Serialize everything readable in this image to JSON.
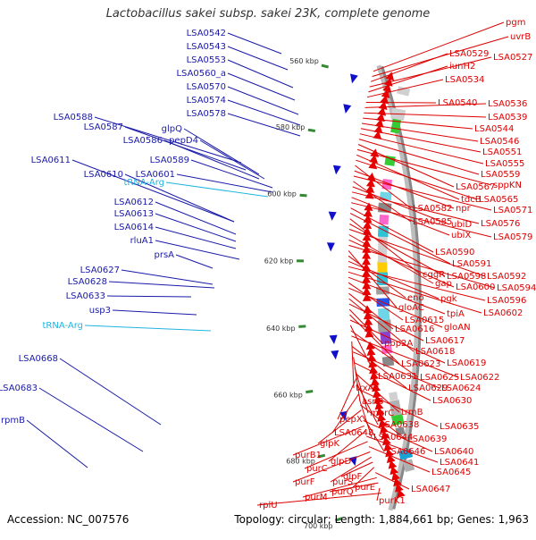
{
  "title": "Lactobacillus sakei subsp. sakei 23K, complete genome",
  "accession": "Accession: NC_007576",
  "topology": "Topology: circular; Length: 1,884,661 bp; Genes: 1,963",
  "colors": {
    "plus_strand": "#1010cc",
    "minus_strand": "#e80000",
    "plus_label": "#1a1aa8",
    "trna_label": "#22b4e0",
    "minus_label": "#dd0000",
    "backbone": "#888888",
    "tick": "#338a33"
  },
  "kbp_ticks": [
    "560 kbp",
    "580 kbp",
    "600 kbp",
    "620 kbp",
    "640 kbp",
    "660 kbp",
    "680 kbp",
    "700 kbp"
  ],
  "left_labels": [
    {
      "text": "LSA0542",
      "kind": "gene"
    },
    {
      "text": "LSA0543",
      "kind": "gene"
    },
    {
      "text": "LSA0553",
      "kind": "gene"
    },
    {
      "text": "LSA0560_a",
      "kind": "gene"
    },
    {
      "text": "LSA0570",
      "kind": "gene"
    },
    {
      "text": "LSA0574",
      "kind": "gene"
    },
    {
      "text": "LSA0578",
      "kind": "gene"
    },
    {
      "text": "LSA0588",
      "kind": "gene"
    },
    {
      "text": "LSA0587",
      "kind": "gene"
    },
    {
      "text": "glpQ",
      "kind": "gene"
    },
    {
      "text": "LSA0586",
      "kind": "gene"
    },
    {
      "text": "pepD4",
      "kind": "gene"
    },
    {
      "text": "LSA0611",
      "kind": "gene"
    },
    {
      "text": "LSA0589",
      "kind": "gene"
    },
    {
      "text": "LSA0610",
      "kind": "gene"
    },
    {
      "text": "LSA0601",
      "kind": "gene"
    },
    {
      "text": "tRNA-Arg",
      "kind": "trna"
    },
    {
      "text": "LSA0612",
      "kind": "gene"
    },
    {
      "text": "LSA0613",
      "kind": "gene"
    },
    {
      "text": "LSA0614",
      "kind": "gene"
    },
    {
      "text": "rluA1",
      "kind": "gene"
    },
    {
      "text": "prsA",
      "kind": "gene"
    },
    {
      "text": "LSA0627",
      "kind": "gene"
    },
    {
      "text": "LSA0628",
      "kind": "gene"
    },
    {
      "text": "LSA0633",
      "kind": "gene"
    },
    {
      "text": "usp3",
      "kind": "gene"
    },
    {
      "text": "tRNA-Arg",
      "kind": "trna"
    },
    {
      "text": "LSA0668",
      "kind": "gene"
    },
    {
      "text": "LSA0683",
      "kind": "gene"
    },
    {
      "text": "rpmB",
      "kind": "gene"
    }
  ],
  "right_labels": [
    {
      "text": "pgm"
    },
    {
      "text": "uvrB"
    },
    {
      "text": "LSA0529"
    },
    {
      "text": "LSA0527"
    },
    {
      "text": "iunH2"
    },
    {
      "text": "LSA0534"
    },
    {
      "text": "LSA0540"
    },
    {
      "text": "LSA0536"
    },
    {
      "text": "LSA0539"
    },
    {
      "text": "LSA0544"
    },
    {
      "text": "LSA0546"
    },
    {
      "text": "LSA0551"
    },
    {
      "text": "LSA0555"
    },
    {
      "text": "LSA0559"
    },
    {
      "text": "LSA0567"
    },
    {
      "text": "sppKN"
    },
    {
      "text": "tdcB"
    },
    {
      "text": "LSA0565"
    },
    {
      "text": "LSA0582"
    },
    {
      "text": "npr"
    },
    {
      "text": "LSA0571"
    },
    {
      "text": "LSA0585"
    },
    {
      "text": "ubiD"
    },
    {
      "text": "LSA0576"
    },
    {
      "text": "ubiX"
    },
    {
      "text": "LSA0579"
    },
    {
      "text": "LSA0590"
    },
    {
      "text": "LSA0591"
    },
    {
      "text": "cggR"
    },
    {
      "text": "LSA0598"
    },
    {
      "text": "LSA0592"
    },
    {
      "text": "gap"
    },
    {
      "text": "LSA0600"
    },
    {
      "text": "LSA0594"
    },
    {
      "text": "gloAC"
    },
    {
      "text": "eno"
    },
    {
      "text": "pgk"
    },
    {
      "text": "LSA0596"
    },
    {
      "text": "LSA0602"
    },
    {
      "text": "tpiA"
    },
    {
      "text": "LSA0615"
    },
    {
      "text": "gloAN"
    },
    {
      "text": "LSA0616"
    },
    {
      "text": "LSA0618"
    },
    {
      "text": "LSA0617"
    },
    {
      "text": "pbp2A"
    },
    {
      "text": "LSA0623"
    },
    {
      "text": "LSA0619"
    },
    {
      "text": "LSA0631"
    },
    {
      "text": "LSA0625"
    },
    {
      "text": "LSA0622"
    },
    {
      "text": "trxA4"
    },
    {
      "text": "LSA0629"
    },
    {
      "text": "LSA0624"
    },
    {
      "text": "asnB"
    },
    {
      "text": "LSA0630"
    },
    {
      "text": "murC"
    },
    {
      "text": "trmB"
    },
    {
      "text": "pepX"
    },
    {
      "text": "LSA0638"
    },
    {
      "text": "LSA0635"
    },
    {
      "text": "LSA0648"
    },
    {
      "text": "LSA0644"
    },
    {
      "text": "LSA0639"
    },
    {
      "text": "glpK"
    },
    {
      "text": "LSA0646"
    },
    {
      "text": "LSA0640"
    },
    {
      "text": "purB1"
    },
    {
      "text": "glpD"
    },
    {
      "text": "LSA0641"
    },
    {
      "text": "purC"
    },
    {
      "text": "LSA0645"
    },
    {
      "text": "purF"
    },
    {
      "text": "purS"
    },
    {
      "text": "glpF"
    },
    {
      "text": "purE"
    },
    {
      "text": "LSA0647"
    },
    {
      "text": "purM"
    },
    {
      "text": "purQ"
    },
    {
      "text": "purK1"
    },
    {
      "text": "rplU"
    }
  ]
}
